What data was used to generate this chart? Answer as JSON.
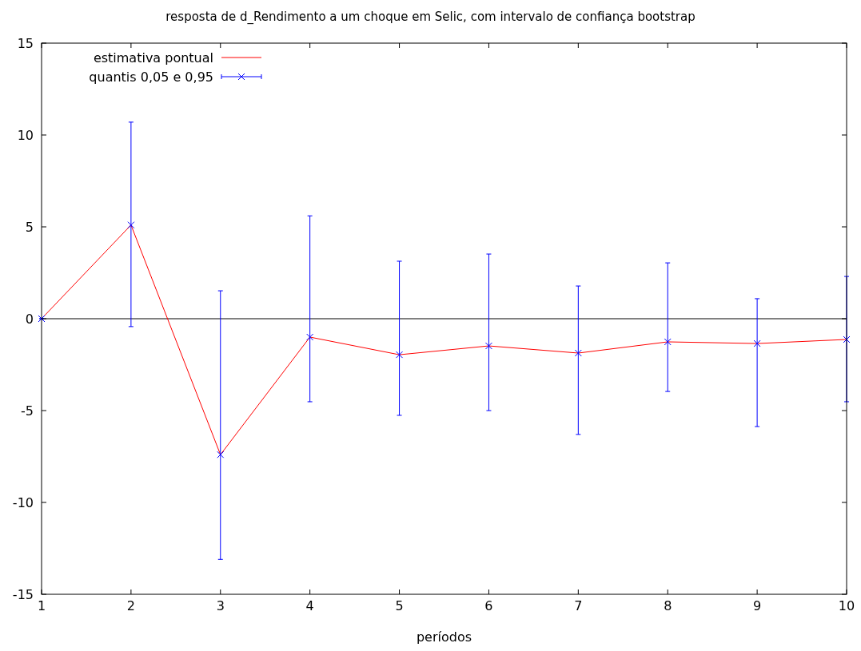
{
  "chart_data": {
    "type": "line",
    "title": "resposta de d_Rendimento a um choque em Selic, com intervalo de confiança bootstrap",
    "xlabel": "períodos",
    "x": [
      1,
      2,
      3,
      4,
      5,
      6,
      7,
      8,
      9,
      10
    ],
    "series": [
      {
        "name": "estimativa pontual",
        "color": "#ff0000",
        "marker": "none",
        "values": [
          0,
          5.1,
          -7.4,
          -1.0,
          -1.96,
          -1.48,
          -1.87,
          -1.26,
          -1.35,
          -1.13
        ]
      },
      {
        "name": "quantis 0,05 e 0,95",
        "type": "scatter",
        "color": "#0000ff",
        "marker": "cross",
        "values": [
          0,
          5.1,
          -7.4,
          -1.0,
          -1.96,
          -1.48,
          -1.87,
          -1.26,
          -1.35,
          -1.13
        ],
        "errors": [
          [
            0,
            0
          ],
          [
            -0.43,
            10.7
          ],
          [
            -13.1,
            1.52
          ],
          [
            -4.52,
            5.6
          ],
          [
            -5.26,
            3.13
          ],
          [
            -5.0,
            3.52
          ],
          [
            -6.3,
            1.78
          ],
          [
            -3.96,
            3.04
          ],
          [
            -5.87,
            1.09
          ],
          [
            -4.52,
            2.3
          ]
        ]
      }
    ],
    "xlim": [
      1,
      10
    ],
    "xticks": [
      1,
      2,
      3,
      4,
      5,
      6,
      7,
      8,
      9,
      10
    ],
    "ylim": [
      -15,
      15
    ],
    "yticks": [
      -15,
      -10,
      -5,
      0,
      5,
      10,
      15
    ],
    "ref_lines": [
      {
        "axis": "y",
        "value": 0,
        "color": "#000000"
      }
    ],
    "grid": false,
    "legend": "top left"
  }
}
